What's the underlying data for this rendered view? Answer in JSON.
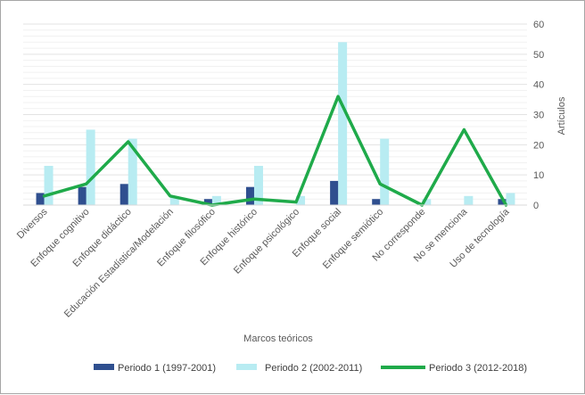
{
  "chart_data": {
    "type": "bar",
    "xlabel": "Marcos teóricos",
    "ylabel": "Artículos",
    "ylim": [
      0,
      60
    ],
    "yticks": [
      0,
      10,
      20,
      30,
      40,
      50,
      60
    ],
    "y_axis_side": "right",
    "grid": true,
    "legend_position": "bottom",
    "categories": [
      "Diversos",
      "Enfoque cognitivo",
      "Enfoque didáctico",
      "Educación Estadística/Modelación",
      "Enfoque filosófico",
      "Enfoque histórico",
      "Enfoque psicológico",
      "Enfoque social",
      "Enfoque semiótico",
      "No corresponde",
      "No se menciona",
      "Uso de tecnología"
    ],
    "series": [
      {
        "name": "Periodo 1 (1997-2001)",
        "type": "bar",
        "color": "#2f4f8f",
        "values": [
          4,
          6,
          7,
          0,
          2,
          6,
          0,
          8,
          2,
          0,
          0,
          2
        ]
      },
      {
        "name": "Periodo 2 (2002-2011)",
        "type": "bar",
        "color": "#b8ecf2",
        "values": [
          13,
          25,
          22,
          3,
          3,
          13,
          3,
          54,
          22,
          2,
          3,
          4
        ]
      },
      {
        "name": "Periodo 3 (2012-2018)",
        "type": "line",
        "color": "#1faa4a",
        "values": [
          3,
          7,
          21,
          3,
          0,
          2,
          1,
          36,
          7,
          0,
          25,
          0
        ]
      }
    ]
  }
}
